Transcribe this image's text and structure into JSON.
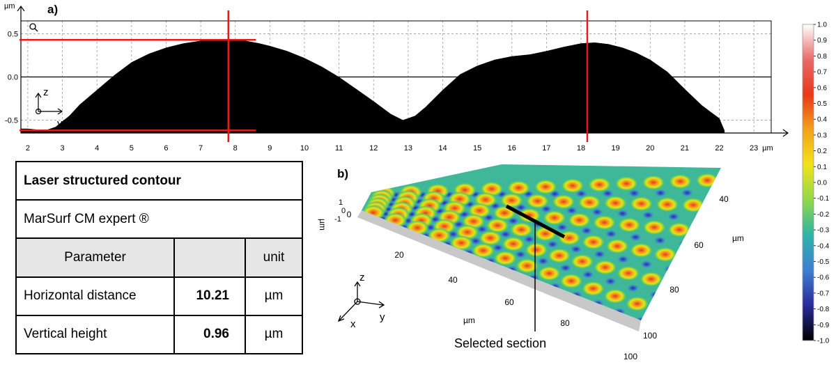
{
  "panel_a_label": "a)",
  "panel_b_label": "b)",
  "table": {
    "title": "Laser structured contour",
    "software": "MarSurf CM expert ®",
    "headers": [
      "Parameter",
      "",
      "unit"
    ],
    "rows": [
      {
        "name": "Horizontal distance",
        "value": "10.21",
        "unit": "µm"
      },
      {
        "name": "Vertical height",
        "value": "0.96",
        "unit": "µm"
      }
    ]
  },
  "callout_text": "Selected section",
  "chart_data": [
    {
      "type": "area",
      "title": "",
      "ylabel": "µm",
      "xlabel": "µm",
      "xlim": [
        1.8,
        23.5
      ],
      "ylim": [
        -0.65,
        0.65
      ],
      "x_ticks": [
        "2",
        "3",
        "4",
        "5",
        "6",
        "7",
        "8",
        "9",
        "10",
        "11",
        "12",
        "13",
        "14",
        "15",
        "16",
        "17",
        "18",
        "19",
        "20",
        "21",
        "22",
        "23"
      ],
      "x_tick_values": [
        2,
        3,
        4,
        5,
        6,
        7,
        8,
        9,
        10,
        11,
        12,
        13,
        14,
        15,
        16,
        17,
        18,
        19,
        20,
        21,
        22,
        23
      ],
      "y_ticks": [
        "0.5",
        "0.0",
        "-0.5"
      ],
      "y_tick_values": [
        0.5,
        0.0,
        -0.5
      ],
      "grid": true,
      "fill_color": "#000000",
      "marker_color": "#e31b1b",
      "axes_icon_labels": [
        "z",
        "y"
      ],
      "series": [
        {
          "x": [
            1.8,
            2.0,
            2.5,
            2.8,
            3.2,
            3.5,
            4.0,
            4.5,
            5.0,
            5.5,
            6.0,
            6.5,
            7.0,
            7.5,
            7.9,
            8.3,
            8.7,
            9.0,
            9.5,
            10.0,
            10.5,
            11.0,
            11.5,
            12.0,
            12.5,
            12.85,
            13.2,
            13.5,
            14.0,
            14.5,
            15.0,
            15.5,
            16.0,
            16.5,
            17.0,
            17.5,
            18.0,
            18.4,
            18.8,
            19.2,
            19.6,
            20.0,
            20.5,
            21.0,
            21.5,
            22.0,
            22.15
          ],
          "y": [
            -0.6,
            -0.6,
            -0.62,
            -0.58,
            -0.45,
            -0.32,
            -0.15,
            0.02,
            0.17,
            0.27,
            0.34,
            0.39,
            0.42,
            0.43,
            0.43,
            0.42,
            0.39,
            0.36,
            0.3,
            0.22,
            0.12,
            0.0,
            -0.14,
            -0.28,
            -0.43,
            -0.5,
            -0.45,
            -0.35,
            -0.15,
            0.03,
            0.13,
            0.2,
            0.24,
            0.26,
            0.3,
            0.35,
            0.39,
            0.4,
            0.38,
            0.34,
            0.28,
            0.2,
            0.06,
            -0.14,
            -0.33,
            -0.48,
            -0.62
          ]
        }
      ],
      "markers": {
        "vertical_x": [
          7.8,
          18.18
        ],
        "horizontal_y": [
          0.43,
          -0.62
        ]
      }
    },
    {
      "type": "heatmap",
      "title": "",
      "xlabel": "µm",
      "ylabel": "µm",
      "zlabel": "µm",
      "x_ticks": [
        "0",
        "20",
        "40",
        "60",
        "80",
        "100"
      ],
      "y_ticks": [
        "40",
        "60",
        "80",
        "100"
      ],
      "z_ticks": [
        "1",
        "0",
        "-1"
      ],
      "axes_icon_labels": [
        "z",
        "x",
        "y"
      ],
      "colorbar": {
        "range": [
          -1.0,
          1.0
        ],
        "ticks": [
          "1.0",
          "0.9",
          "0.8",
          "0.7",
          "0.6",
          "0.5",
          "0.4",
          "0.3",
          "0.2",
          "0.1",
          "0.0",
          "-0.1",
          "-0.2",
          "-0.3",
          "-0.4",
          "-0.5",
          "-0.6",
          "-0.7",
          "-0.8",
          "-0.9",
          "-1.0"
        ],
        "tick_values": [
          1.0,
          0.9,
          0.8,
          0.7,
          0.6,
          0.5,
          0.4,
          0.3,
          0.2,
          0.1,
          0.0,
          -0.1,
          -0.2,
          -0.3,
          -0.4,
          -0.5,
          -0.6,
          -0.7,
          -0.8,
          -0.9,
          -1.0
        ],
        "colors": [
          "#ffffff",
          "#e86a6a",
          "#e83818",
          "#f2a21c",
          "#f2e21a",
          "#8fd84a",
          "#2fb3a8",
          "#3d7fd1",
          "#2a2a9a",
          "#000000"
        ]
      }
    }
  ]
}
